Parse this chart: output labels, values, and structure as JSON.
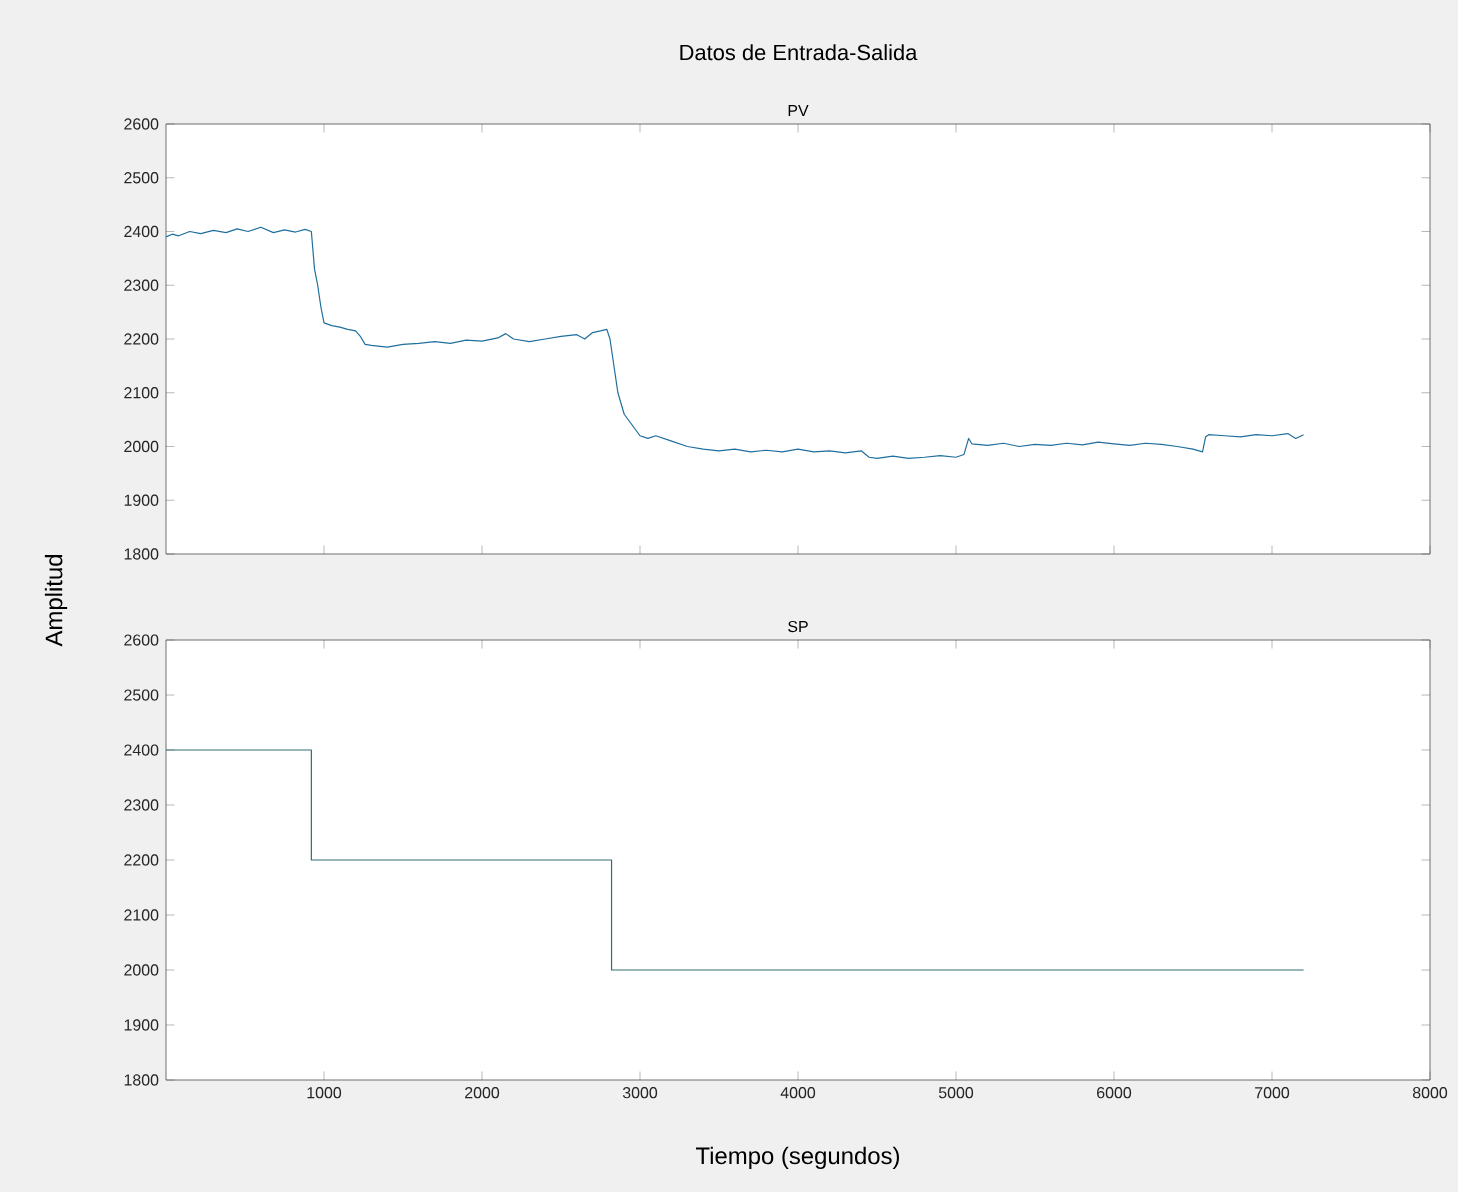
{
  "chart_data": [
    {
      "type": "line",
      "title": "Datos de Entrada-Salida",
      "subtitle": "PV",
      "ylabel": "Amplitud",
      "x": [
        0,
        40,
        80,
        150,
        220,
        300,
        380,
        450,
        520,
        600,
        680,
        750,
        820,
        880,
        920,
        940,
        960,
        980,
        1000,
        1050,
        1100,
        1150,
        1200,
        1230,
        1260,
        1300,
        1400,
        1500,
        1600,
        1700,
        1800,
        1900,
        2000,
        2100,
        2150,
        2200,
        2300,
        2400,
        2500,
        2600,
        2650,
        2700,
        2750,
        2790,
        2810,
        2830,
        2860,
        2900,
        2950,
        3000,
        3050,
        3100,
        3200,
        3300,
        3400,
        3500,
        3600,
        3700,
        3800,
        3900,
        4000,
        4100,
        4200,
        4300,
        4400,
        4450,
        4500,
        4600,
        4700,
        4800,
        4900,
        5000,
        5050,
        5080,
        5100,
        5200,
        5300,
        5400,
        5500,
        5600,
        5700,
        5800,
        5900,
        6000,
        6100,
        6200,
        6300,
        6400,
        6500,
        6560,
        6580,
        6600,
        6700,
        6800,
        6900,
        7000,
        7100,
        7150,
        7200
      ],
      "series": [
        {
          "color": "#1f6f9e",
          "values": [
            2390,
            2395,
            2392,
            2400,
            2396,
            2402,
            2398,
            2405,
            2400,
            2408,
            2398,
            2403,
            2399,
            2404,
            2400,
            2330,
            2300,
            2260,
            2230,
            2225,
            2222,
            2218,
            2215,
            2205,
            2190,
            2188,
            2185,
            2190,
            2192,
            2195,
            2192,
            2198,
            2196,
            2202,
            2210,
            2200,
            2195,
            2200,
            2205,
            2208,
            2200,
            2212,
            2215,
            2218,
            2200,
            2160,
            2100,
            2060,
            2040,
            2020,
            2015,
            2020,
            2010,
            2000,
            1995,
            1992,
            1995,
            1990,
            1993,
            1990,
            1995,
            1990,
            1992,
            1988,
            1992,
            1980,
            1978,
            1982,
            1978,
            1980,
            1983,
            1980,
            1985,
            2015,
            2005,
            2002,
            2006,
            2000,
            2004,
            2002,
            2006,
            2003,
            2008,
            2005,
            2002,
            2006,
            2004,
            2000,
            1995,
            1990,
            2018,
            2022,
            2020,
            2018,
            2022,
            2020,
            2024,
            2015,
            2022
          ]
        }
      ],
      "xlim": [
        0,
        8000
      ],
      "ylim": [
        1800,
        2600
      ],
      "xticks": [
        1000,
        2000,
        3000,
        4000,
        5000,
        6000,
        7000,
        8000
      ],
      "yticks": [
        1800,
        1900,
        2000,
        2100,
        2200,
        2300,
        2400,
        2500,
        2600
      ],
      "tick_labels": "y"
    },
    {
      "type": "step",
      "title": "SP",
      "xlabel": "Tiempo (segundos)",
      "x": [
        0,
        920,
        2820,
        7200
      ],
      "series": [
        {
          "color": "#2f6f72",
          "values": [
            2400,
            2200,
            2000,
            2000
          ]
        }
      ],
      "xlim": [
        0,
        8000
      ],
      "ylim": [
        1800,
        2600
      ],
      "xticks": [
        1000,
        2000,
        3000,
        4000,
        5000,
        6000,
        7000,
        8000
      ],
      "yticks": [
        1800,
        1900,
        2000,
        2100,
        2200,
        2300,
        2400,
        2500,
        2600
      ]
    }
  ]
}
